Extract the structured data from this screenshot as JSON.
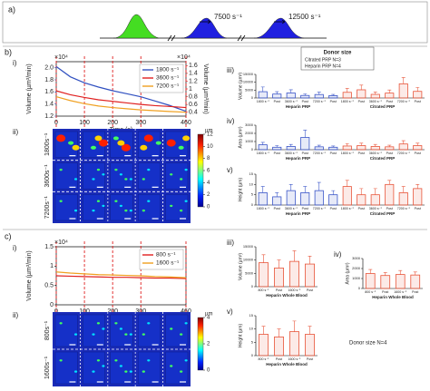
{
  "panel_a": {
    "label": "a)",
    "rates": [
      "7500 s⁻¹",
      "12500 s⁻¹"
    ]
  },
  "panel_labels": {
    "b": "b)",
    "c": "c)"
  },
  "donor_b": {
    "title": "Donor size",
    "lines": [
      "Citrated PRP  N=3",
      "Heparin PRP  N=4"
    ]
  },
  "donor_c": "Donor size  N=4",
  "images": [
    {
      "sub": "ii)",
      "rows": [
        "1800s⁻¹",
        "3600s⁻¹",
        "7200s⁻¹"
      ],
      "colorbar": {
        "label": "µm",
        "lim": [
          0,
          12
        ],
        "ticks": [
          0,
          2,
          4,
          6,
          8,
          10,
          12
        ]
      }
    },
    {
      "sub": "ii)",
      "rows": [
        "800s⁻¹",
        "1600s⁻¹"
      ],
      "colorbar": {
        "label": "µm",
        "lim": [
          0,
          4
        ],
        "ticks": [
          0,
          2,
          4
        ]
      }
    }
  ],
  "chart_data": [
    {
      "type": "line",
      "sub": "i)",
      "xlabel": "Time (s)",
      "ylabel": "Volume (µm³/min)",
      "y2label": "Volume (µm³/min)",
      "yexp": "×10⁴",
      "y2exp": "×10⁴",
      "ycolor": "#3050c0",
      "y2color": "#e02020",
      "x": [
        0,
        50,
        100,
        150,
        200,
        250,
        300,
        350,
        400,
        460
      ],
      "xlim": [
        0,
        460
      ],
      "xticks": [
        0,
        100,
        200,
        300,
        460
      ],
      "ylim": [
        1.2,
        2.1
      ],
      "yticks": [
        1.2,
        1.4,
        1.6,
        1.8,
        {
          "value": 2,
          "label": "2.0"
        }
      ],
      "y2lim": [
        0.3,
        1.7
      ],
      "y2ticks": [
        0.4,
        0.6,
        0.8,
        {
          "value": 1,
          "label": "1"
        },
        1.2,
        1.4,
        1.6
      ],
      "legend": "upper right",
      "series": [
        {
          "name": "1800 s⁻¹",
          "color": "#3050c0",
          "values": [
            2.02,
            1.85,
            1.75,
            1.68,
            1.62,
            1.57,
            1.52,
            1.45,
            1.38,
            1.28
          ]
        },
        {
          "name": "3600 s⁻¹",
          "color": "#e02020",
          "axis": "y2",
          "values": [
            0.95,
            0.85,
            0.78,
            0.72,
            0.68,
            0.64,
            0.6,
            0.57,
            0.55,
            0.52
          ]
        },
        {
          "name": "7200 s⁻¹",
          "color": "#f0a020",
          "axis": "y2",
          "values": [
            0.8,
            0.7,
            0.62,
            0.56,
            0.52,
            0.49,
            0.46,
            0.44,
            0.42,
            0.4
          ]
        }
      ]
    },
    {
      "type": "bar",
      "sub": "iii)",
      "ylabel": "Volume (µm³)",
      "ylim": [
        0,
        15000
      ],
      "yticks": [
        0,
        5000,
        10000,
        15000
      ],
      "categories": [
        "1800 s⁻¹",
        "Post",
        "3600 s⁻¹",
        "Post",
        "7200 s⁻¹",
        "Post",
        "1800 s⁻¹",
        "Post",
        "3600 s⁻¹",
        "Post",
        "7200 s⁻¹",
        "Post"
      ],
      "groups": [
        "Heparin PRP",
        "Citrated PRP"
      ],
      "colors": [
        "#3a55c8",
        "#e8553a"
      ],
      "values": [
        4000,
        2500,
        3200,
        1600,
        2200,
        1500,
        3600,
        5200,
        2300,
        3100,
        9000,
        4200
      ],
      "errors": [
        3000,
        1500,
        2000,
        1000,
        1500,
        800,
        2500,
        3000,
        1500,
        2000,
        4000,
        2500
      ]
    },
    {
      "type": "bar",
      "sub": "iv)",
      "ylabel": "Area (µm²)",
      "ylim": [
        0,
        3000
      ],
      "yticks": [
        0,
        1000,
        2000,
        3000
      ],
      "categories": [
        "1800 s⁻¹",
        "Post",
        "3600 s⁻¹",
        "Post",
        "7200 s⁻¹",
        "Post",
        "1800 s⁻¹",
        "Post",
        "3600 s⁻¹",
        "Post",
        "7200 s⁻¹",
        "Post"
      ],
      "groups": [
        "Heparin PRP",
        "Citrated PRP"
      ],
      "colors": [
        "#3a55c8",
        "#e8553a"
      ],
      "values": [
        600,
        300,
        400,
        1500,
        350,
        300,
        450,
        500,
        400,
        350,
        700,
        500
      ],
      "errors": [
        300,
        200,
        250,
        900,
        200,
        150,
        300,
        300,
        250,
        200,
        400,
        300
      ]
    },
    {
      "type": "bar",
      "sub": "v)",
      "ylabel": "Height (µm)",
      "ylim": [
        0,
        15
      ],
      "yticks": [
        0,
        5,
        10,
        15
      ],
      "categories": [
        "1800 s⁻¹",
        "Post",
        "3600 s⁻¹",
        "Post",
        "7200 s⁻¹",
        "Post",
        "1800 s⁻¹",
        "Post",
        "3600 s⁻¹",
        "Post",
        "7200 s⁻¹",
        "Post"
      ],
      "groups": [
        "Heparin PRP",
        "Citrated PRP"
      ],
      "colors": [
        "#3a55c8",
        "#e8553a"
      ],
      "values": [
        6,
        4,
        7,
        6,
        7,
        5,
        9,
        5,
        5,
        10,
        6,
        8
      ],
      "errors": [
        3,
        2,
        3,
        3,
        4,
        2,
        3,
        3,
        3,
        2,
        3,
        2
      ]
    },
    {
      "type": "line",
      "sub": "i)",
      "xlabel": "Time (s)",
      "ylabel": "Volume (µm³/min)",
      "yexp": "×10⁴",
      "ycolor": "#000000",
      "x": [
        0,
        50,
        100,
        150,
        200,
        250,
        300,
        350,
        400,
        460
      ],
      "xlim": [
        0,
        460
      ],
      "xticks": [
        0,
        100,
        200,
        300,
        460
      ],
      "ylim": [
        0,
        1.5
      ],
      "yticks": [
        0,
        0.5,
        1,
        1.5
      ],
      "legend": "upper right",
      "series": [
        {
          "name": "800 s⁻¹",
          "color": "#e02020",
          "values": [
            0.75,
            0.74,
            0.73,
            0.72,
            0.71,
            0.71,
            0.7,
            0.69,
            0.69,
            0.68
          ]
        },
        {
          "name": "1600 s⁻¹",
          "color": "#f0a020",
          "values": [
            0.85,
            0.82,
            0.8,
            0.78,
            0.77,
            0.76,
            0.75,
            0.73,
            0.72,
            0.7
          ]
        }
      ]
    },
    {
      "type": "bar",
      "sub": "iii)",
      "ylabel": "Volume (µm³)",
      "ylim": [
        0,
        15000
      ],
      "yticks": [
        0,
        5000,
        10000,
        15000
      ],
      "categories": [
        "800 s⁻¹",
        "Post",
        "1600 s⁻¹",
        "Post"
      ],
      "groups": [
        "Heparin Whole Blood"
      ],
      "colors": [
        "#e8553a"
      ],
      "values": [
        9000,
        7000,
        9500,
        8500
      ],
      "errors": [
        3000,
        3000,
        4000,
        3000
      ]
    },
    {
      "type": "bar",
      "sub": "iv)",
      "ylabel": "Area (µm²)",
      "ylim": [
        0,
        3000
      ],
      "yticks": [
        0,
        1000,
        2000,
        3000
      ],
      "categories": [
        "800 s⁻¹",
        "Post",
        "1600 s⁻¹",
        "Post"
      ],
      "groups": [
        "Heparin Whole Blood"
      ],
      "colors": [
        "#e8553a"
      ],
      "values": [
        1500,
        1300,
        1400,
        1350
      ],
      "errors": [
        400,
        300,
        400,
        300
      ]
    },
    {
      "type": "bar",
      "sub": "v)",
      "ylabel": "Height (µm)",
      "ylim": [
        0,
        15
      ],
      "yticks": [
        0,
        5,
        10,
        15
      ],
      "categories": [
        "800 s⁻¹",
        "Post",
        "1600 s⁻¹",
        "Post"
      ],
      "groups": [
        "Heparin Whole Blood"
      ],
      "colors": [
        "#e8553a"
      ],
      "values": [
        8,
        7,
        9,
        8
      ],
      "errors": [
        3,
        3,
        4,
        3
      ]
    }
  ]
}
